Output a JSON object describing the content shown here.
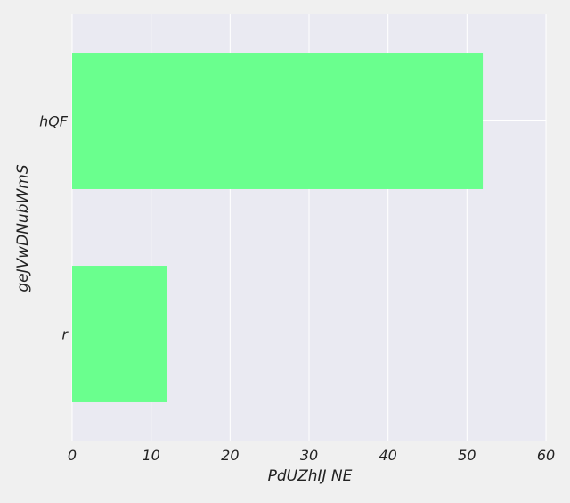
{
  "chart_data": {
    "type": "bar",
    "orientation": "horizontal",
    "categories": [
      "hQF",
      "r"
    ],
    "values": [
      52,
      12
    ],
    "xlabel": "PdUZhIJ  NE",
    "ylabel": "geJVwDNubWmS",
    "xlim": [
      0,
      60
    ],
    "xticks": [
      "0",
      "10",
      "20",
      "30",
      "40",
      "50",
      "60"
    ],
    "grid": true,
    "colors": {
      "bar": "#6aff8e",
      "plot_background": "#eaeaf2",
      "figure_background": "#f0f0f0",
      "grid": "#ffffff",
      "text": "#222222"
    }
  }
}
